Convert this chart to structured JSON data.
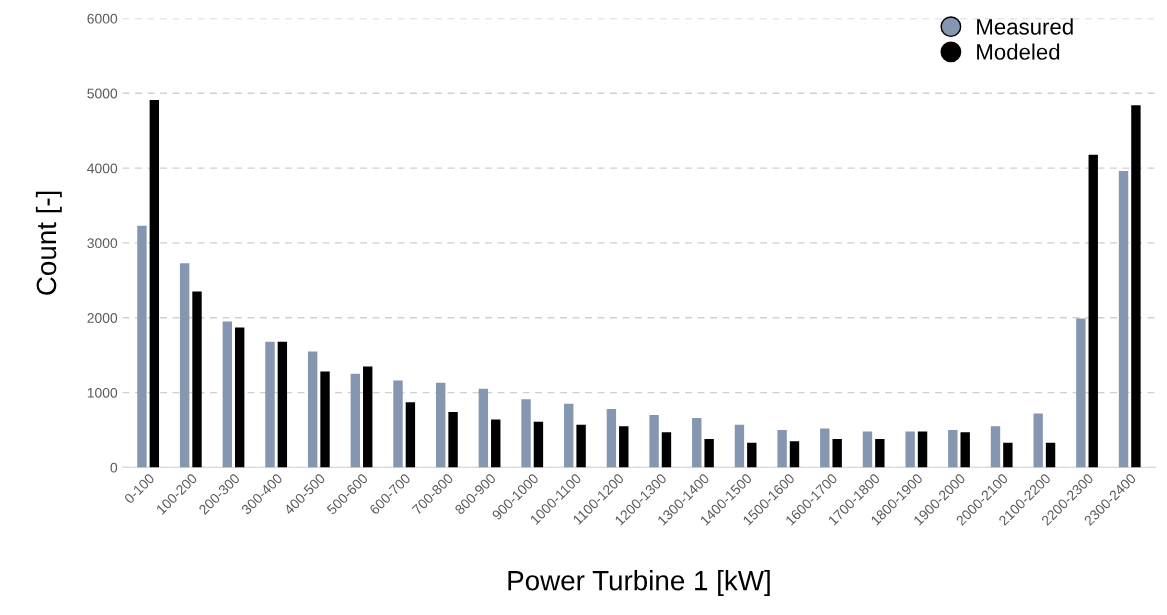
{
  "chart_data": {
    "type": "bar",
    "xlabel": "Power Turbine 1 [kW]",
    "ylabel": "Count [-]",
    "categories": [
      "0-100",
      "100-200",
      "200-300",
      "300-400",
      "400-500",
      "500-600",
      "600-700",
      "700-800",
      "800-900",
      "900-1000",
      "1000-1100",
      "1100-1200",
      "1200-1300",
      "1300-1400",
      "1400-1500",
      "1500-1600",
      "1600-1700",
      "1700-1800",
      "1800-1900",
      "1900-2000",
      "2000-2100",
      "2100-2200",
      "2200-2300",
      "2300-2400"
    ],
    "series": [
      {
        "name": "Measured",
        "color": "#8496b0",
        "values": [
          3230,
          2730,
          1950,
          1680,
          1550,
          1250,
          1160,
          1130,
          1050,
          910,
          850,
          780,
          700,
          660,
          570,
          500,
          520,
          480,
          480,
          500,
          550,
          720,
          1990,
          3960
        ]
      },
      {
        "name": "Modeled",
        "color": "#000000",
        "values": [
          4910,
          2350,
          1870,
          1680,
          1280,
          1350,
          870,
          740,
          640,
          610,
          570,
          550,
          470,
          380,
          330,
          350,
          380,
          380,
          480,
          470,
          330,
          330,
          4180,
          4840
        ]
      }
    ],
    "ylim": [
      0,
      6000
    ],
    "yticks": [
      0,
      1000,
      2000,
      3000,
      4000,
      5000,
      6000
    ],
    "grid": "y",
    "legend": "top right"
  }
}
